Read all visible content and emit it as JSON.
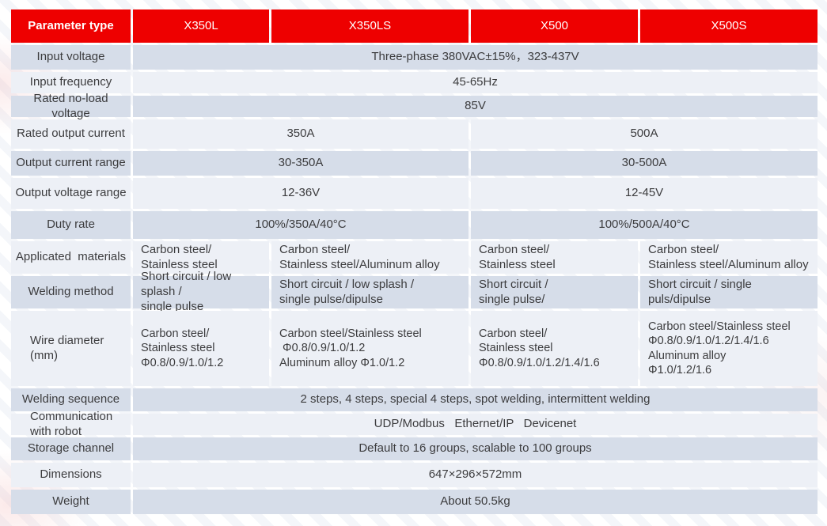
{
  "colors": {
    "header_red": "#ee0000",
    "row_dark": "#d6dde9",
    "row_light": "#edf0f6",
    "text": "#3c3c3e"
  },
  "table": {
    "header": {
      "param": "Parameter type",
      "models": [
        "X350L",
        "X350LS",
        "X500",
        "X500S"
      ]
    },
    "rows": [
      {
        "label": "Input voltage",
        "cells": [
          {
            "text": "Three-phase 380VAC±15%，323-437V",
            "span": 4
          }
        ]
      },
      {
        "label": "Input frequency",
        "cells": [
          {
            "text": "45-65Hz",
            "span": 4
          }
        ]
      },
      {
        "label": "Rated no-load voltage",
        "cells": [
          {
            "text": "85V",
            "span": 4
          }
        ]
      },
      {
        "label": "Rated output current",
        "cells": [
          {
            "text": "350A",
            "span": 2
          },
          {
            "text": "500A",
            "span": 2
          }
        ]
      },
      {
        "label": "Output current range",
        "cells": [
          {
            "text": "30-350A",
            "span": 2
          },
          {
            "text": "30-500A",
            "span": 2
          }
        ]
      },
      {
        "label": "Output voltage range",
        "cells": [
          {
            "text": "12-36V",
            "span": 2
          },
          {
            "text": "12-45V",
            "span": 2
          }
        ]
      },
      {
        "label": "Duty rate",
        "cells": [
          {
            "text": "100%/350A/40°C",
            "span": 2
          },
          {
            "text": "100%/500A/40°C",
            "span": 2
          }
        ]
      },
      {
        "label": "Applicated  materials",
        "cells": [
          {
            "text": "Carbon steel/\nStainless steel",
            "span": 1
          },
          {
            "text": "Carbon steel/\nStainless steel/Aluminum alloy",
            "span": 1
          },
          {
            "text": "Carbon steel/\nStainless steel",
            "span": 1
          },
          {
            "text": "Carbon steel/\nStainless steel/Aluminum alloy",
            "span": 1
          }
        ]
      },
      {
        "label": "Welding method",
        "cells": [
          {
            "text": "Short circuit / low splash /\nsingle pulse",
            "span": 1
          },
          {
            "text": "Short circuit / low splash /\nsingle pulse/dipulse",
            "span": 1
          },
          {
            "text": "Short circuit /\nsingle pulse/",
            "span": 1
          },
          {
            "text": "Short circuit / single puls/dipulse",
            "span": 1
          }
        ]
      },
      {
        "label": "Wire diameter\n(mm)",
        "cells": [
          {
            "text": "Carbon steel/\nStainless steel\nΦ0.8/0.9/1.0/1.2",
            "span": 1
          },
          {
            "text": "Carbon steel/Stainless steel\n Φ0.8/0.9/1.0/1.2\nAluminum alloy Φ1.0/1.2",
            "span": 1
          },
          {
            "text": "Carbon steel/\nStainless steel\nΦ0.8/0.9/1.0/1.2/1.4/1.6",
            "span": 1
          },
          {
            "text": "Carbon steel/Stainless steel\nΦ0.8/0.9/1.0/1.2/1.4/1.6\nAluminum alloy\nΦ1.0/1.2/1.6",
            "span": 1
          }
        ]
      },
      {
        "label": "Welding sequence",
        "cells": [
          {
            "text": "2 steps, 4 steps, special 4 steps, spot welding, intermittent welding",
            "span": 4
          }
        ]
      },
      {
        "label": "Communication\nwith robot",
        "cells": [
          {
            "text": "UDP/Modbus   Ethernet/IP   Devicenet",
            "span": 4
          }
        ]
      },
      {
        "label": "Storage channel",
        "cells": [
          {
            "text": "Default to 16 groups, scalable to 100 groups",
            "span": 4
          }
        ]
      },
      {
        "label": "Dimensions",
        "cells": [
          {
            "text": "647×296×572mm",
            "span": 4
          }
        ]
      },
      {
        "label": "Weight",
        "cells": [
          {
            "text": "About 50.5kg",
            "span": 4
          }
        ]
      }
    ]
  }
}
